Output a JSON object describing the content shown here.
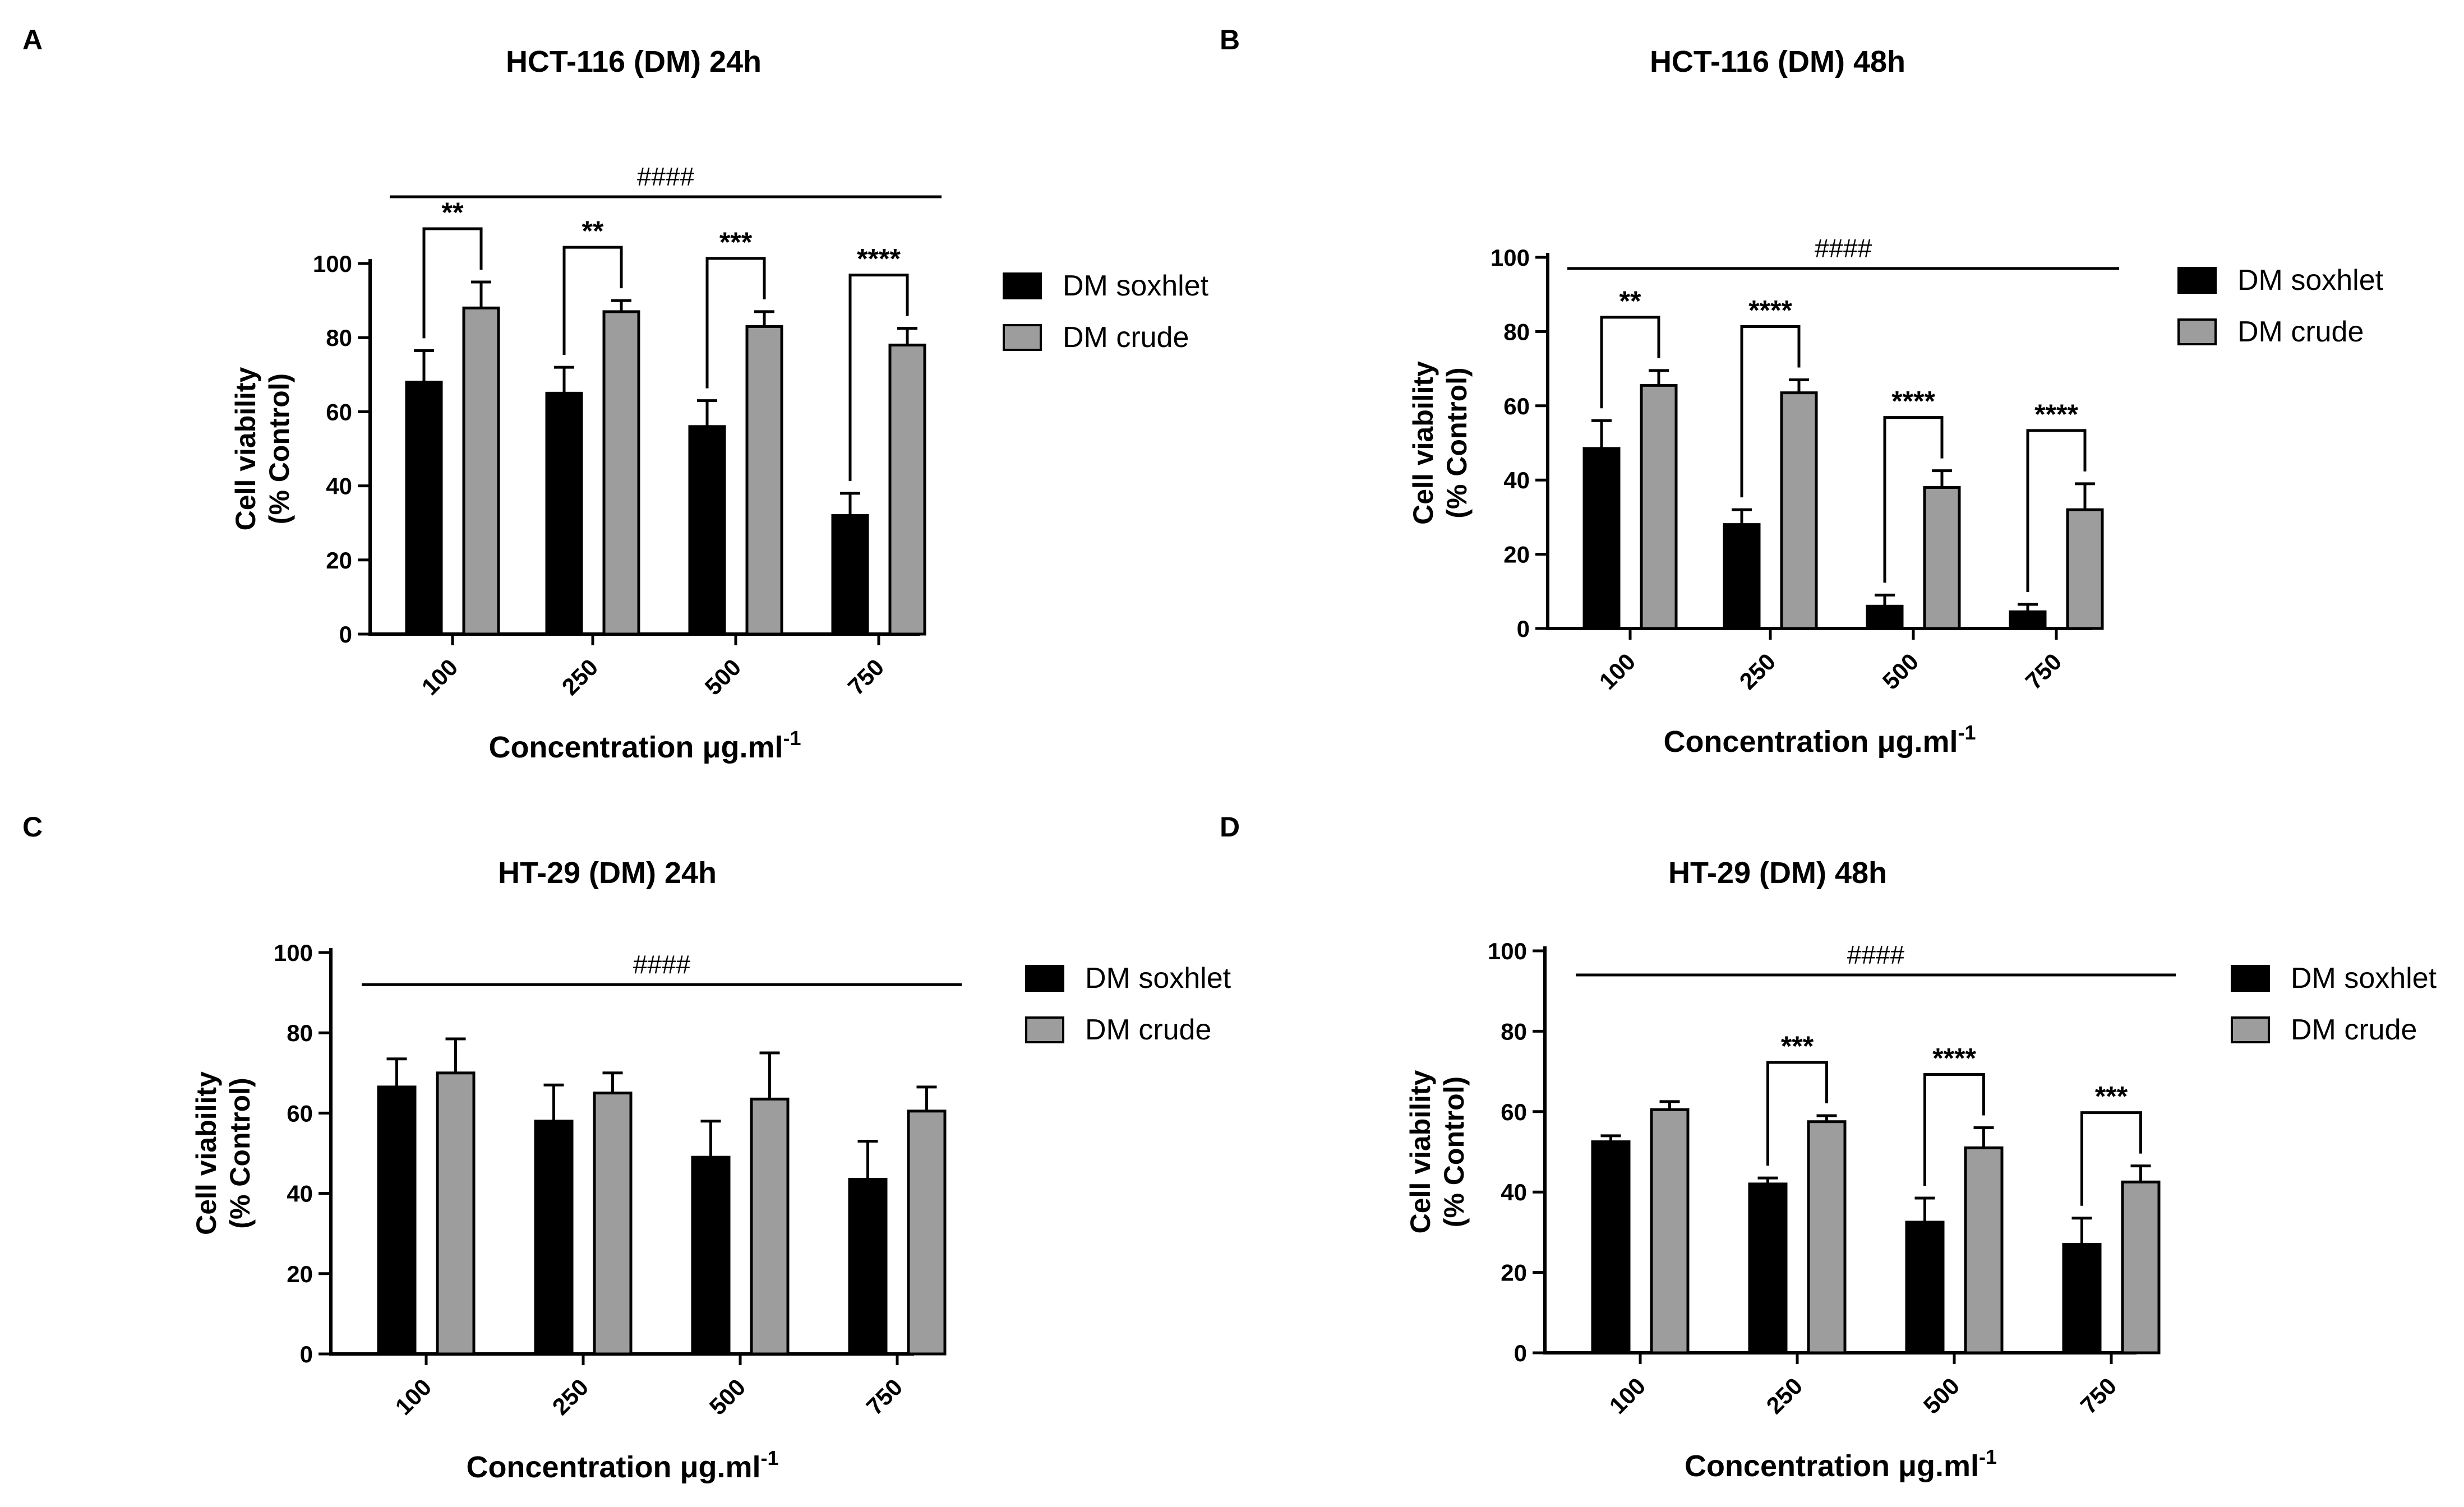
{
  "colors": {
    "soxhlet": "#000000",
    "crude": "#9d9d9d",
    "axis": "#000000",
    "background": "#ffffff"
  },
  "chart_data": [
    {
      "panel_label": "A",
      "type": "bar",
      "title": "HCT-116 (DM) 24h",
      "xlabel": "Concentration μg.ml",
      "xlabel_sup": "-1",
      "ylabel_line1": "Cell viability",
      "ylabel_line2": "(% Control)",
      "ylim": [
        0,
        100
      ],
      "yticks": [
        "0",
        "20",
        "40",
        "60",
        "80",
        "100"
      ],
      "categories": [
        "100",
        "250",
        "500",
        "750"
      ],
      "series": [
        {
          "name": "DM soxhlet",
          "values": [
            68,
            65,
            56,
            32
          ],
          "errors": [
            8.5,
            7,
            7,
            6
          ]
        },
        {
          "name": "DM crude",
          "values": [
            88,
            87,
            83,
            78
          ],
          "errors": [
            7,
            3,
            4,
            4.5
          ]
        }
      ],
      "pair_significance": [
        "**",
        "**",
        "***",
        "****"
      ],
      "overall_significance": "####",
      "overall_bracket_value": 118
    },
    {
      "panel_label": "B",
      "type": "bar",
      "title": "HCT-116 (DM) 48h",
      "xlabel": "Concentration μg.ml",
      "xlabel_sup": "-1",
      "ylabel_line1": "Cell viability",
      "ylabel_line2": "(% Control)",
      "ylim": [
        0,
        100
      ],
      "yticks": [
        "0",
        "20",
        "40",
        "60",
        "80",
        "100"
      ],
      "categories": [
        "100",
        "250",
        "500",
        "750"
      ],
      "series": [
        {
          "name": "DM soxhlet",
          "values": [
            48.5,
            28,
            6,
            4.5
          ],
          "errors": [
            7.5,
            4,
            3,
            2
          ]
        },
        {
          "name": "DM crude",
          "values": [
            65.5,
            63.5,
            38,
            32
          ],
          "errors": [
            4,
            3.5,
            4.5,
            7
          ]
        }
      ],
      "pair_significance": [
        "**",
        "****",
        "****",
        "****"
      ],
      "overall_significance": "####",
      "overall_bracket_value": 97
    },
    {
      "panel_label": "C",
      "type": "bar",
      "title": "HT-29 (DM) 24h",
      "xlabel": "Concentration μg.ml",
      "xlabel_sup": "-1",
      "ylabel_line1": "Cell viability",
      "ylabel_line2": "(% Control)",
      "ylim": [
        0,
        100
      ],
      "yticks": [
        "0",
        "20",
        "40",
        "60",
        "80",
        "100"
      ],
      "categories": [
        "100",
        "250",
        "500",
        "750"
      ],
      "series": [
        {
          "name": "DM soxhlet",
          "values": [
            66.5,
            58,
            49,
            43.5
          ],
          "errors": [
            7,
            9,
            9,
            9.5
          ]
        },
        {
          "name": "DM crude",
          "values": [
            70,
            65,
            63.5,
            60.5
          ],
          "errors": [
            8.5,
            5,
            11.5,
            6
          ]
        }
      ],
      "pair_significance": [
        "",
        "",
        "",
        ""
      ],
      "overall_significance": "####",
      "overall_bracket_value": 92
    },
    {
      "panel_label": "D",
      "type": "bar",
      "title": "HT-29 (DM) 48h",
      "xlabel": "Concentration μg.ml",
      "xlabel_sup": "-1",
      "ylabel_line1": "Cell viability",
      "ylabel_line2": "(% Control)",
      "ylim": [
        0,
        100
      ],
      "yticks": [
        "0",
        "20",
        "40",
        "60",
        "80",
        "100"
      ],
      "categories": [
        "100",
        "250",
        "500",
        "750"
      ],
      "series": [
        {
          "name": "DM soxhlet",
          "values": [
            52.5,
            42,
            32.5,
            27
          ],
          "errors": [
            1.5,
            1.5,
            6,
            6.5
          ]
        },
        {
          "name": "DM crude",
          "values": [
            60.5,
            57.5,
            51,
            42.5
          ],
          "errors": [
            2,
            1.5,
            5,
            4
          ]
        }
      ],
      "pair_significance": [
        "",
        "***",
        "****",
        "***"
      ],
      "overall_significance": "####",
      "overall_bracket_value": 94
    }
  ]
}
